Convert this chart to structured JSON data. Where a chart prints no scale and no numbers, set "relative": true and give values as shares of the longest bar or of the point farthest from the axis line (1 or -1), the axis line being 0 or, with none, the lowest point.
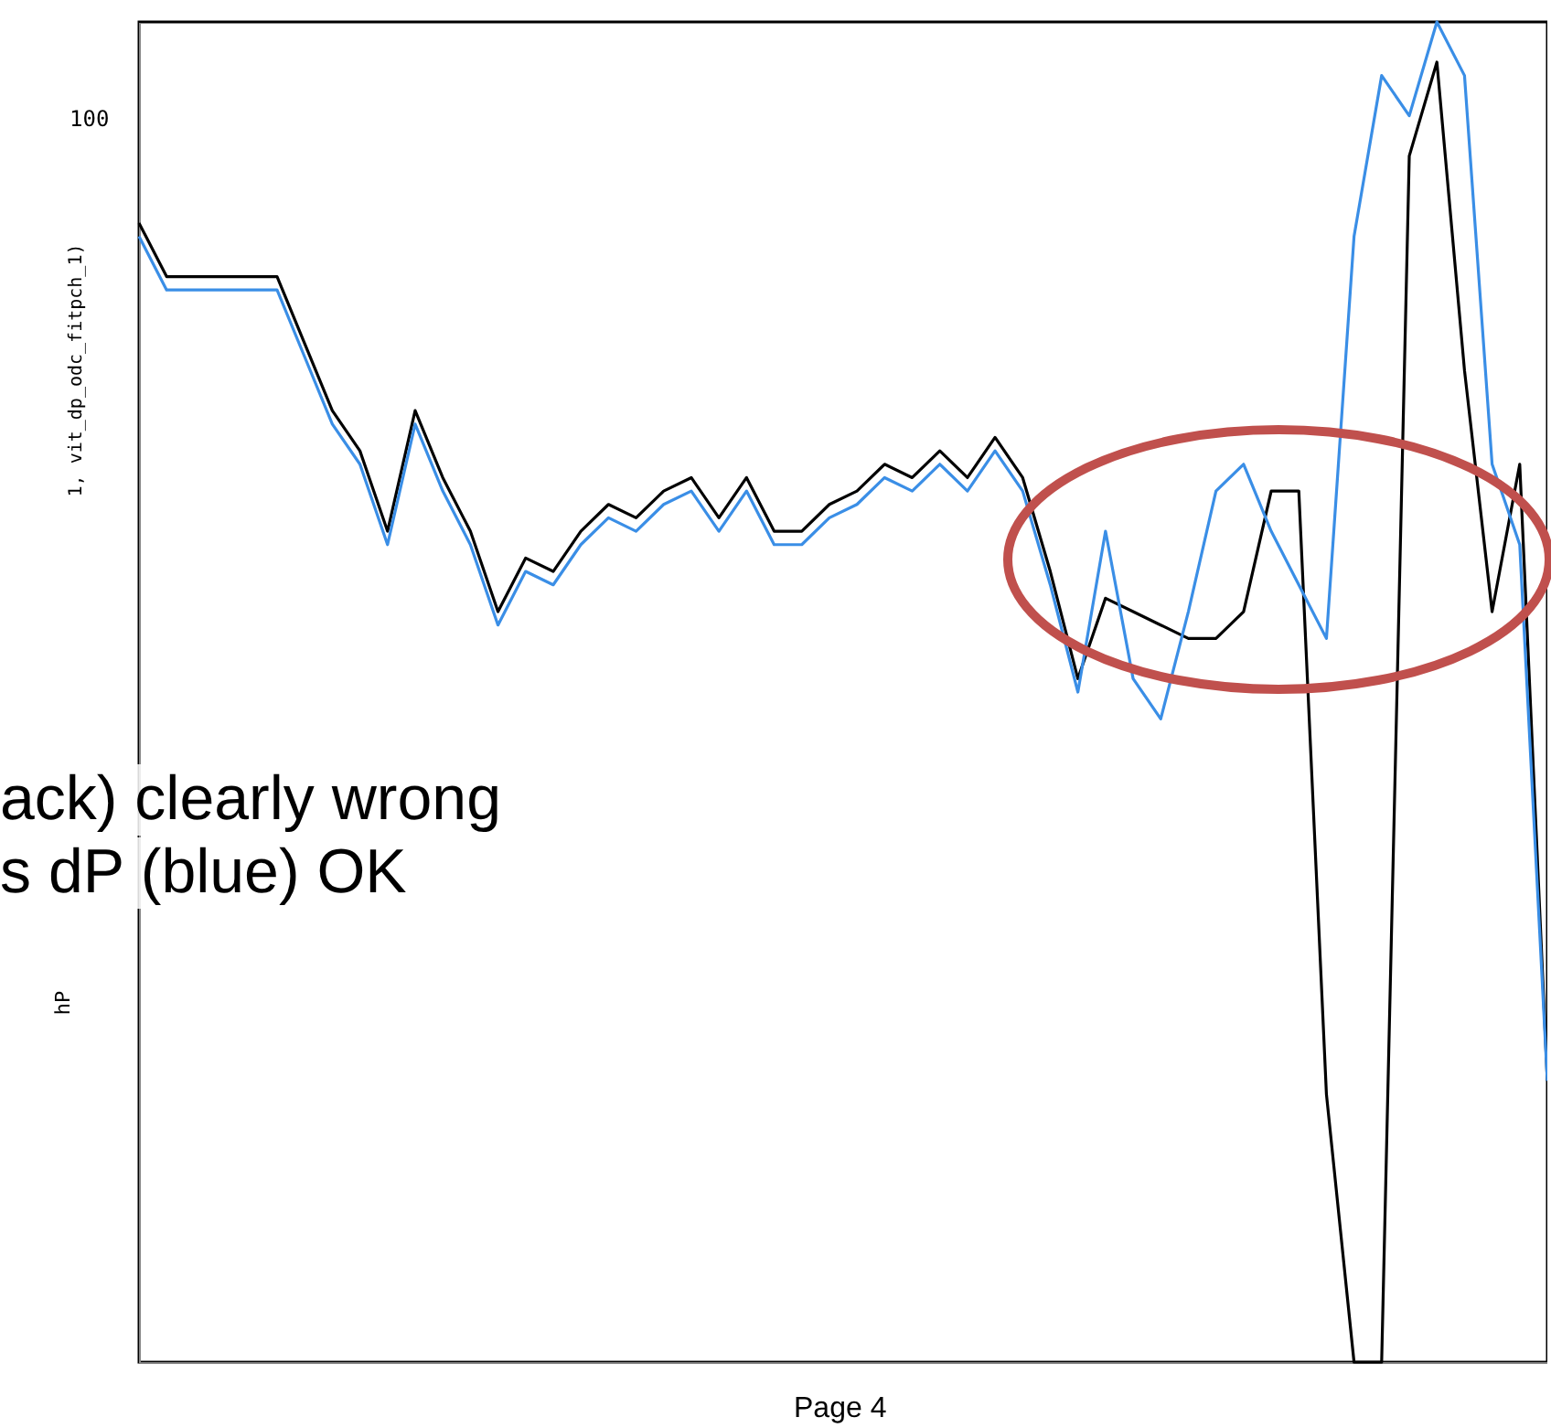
{
  "chart_data": {
    "type": "line",
    "relative": true,
    "ylabel": "1, vit_dp_odc_fitpch_1)",
    "categories": [
      null,
      null,
      null,
      null,
      null,
      null,
      null,
      null,
      null,
      null,
      null,
      null,
      null,
      null,
      null,
      null,
      null,
      null,
      null,
      null,
      null,
      null,
      null,
      null,
      null,
      null,
      null,
      null,
      null,
      null,
      null,
      null,
      null,
      null,
      null,
      null,
      null,
      null,
      null,
      null,
      null,
      null,
      null,
      null,
      null,
      null,
      null,
      null,
      null,
      null,
      null,
      null
    ],
    "series": [
      {
        "color": "#000000",
        "values": [
          0.85,
          0.81,
          0.81,
          0.81,
          0.81,
          0.81,
          0.76,
          0.71,
          0.68,
          0.62,
          0.71,
          0.66,
          0.62,
          0.56,
          0.6,
          0.59,
          0.62,
          0.64,
          0.63,
          0.65,
          0.66,
          0.63,
          0.66,
          0.62,
          0.62,
          0.64,
          0.65,
          0.67,
          0.66,
          0.68,
          0.66,
          0.69,
          0.66,
          0.59,
          0.51,
          0.57,
          0.56,
          0.55,
          0.54,
          0.54,
          0.56,
          0.65,
          0.65,
          0.2,
          0,
          0,
          0.9,
          0.97,
          0.74,
          0.56,
          0.67,
          0.21
        ]
      },
      {
        "color": "#3a8ee6",
        "values": [
          0.84,
          0.8,
          0.8,
          0.8,
          0.8,
          0.8,
          0.75,
          0.7,
          0.67,
          0.61,
          0.7,
          0.65,
          0.61,
          0.55,
          0.59,
          0.58,
          0.61,
          0.63,
          0.62,
          0.64,
          0.65,
          0.62,
          0.65,
          0.61,
          0.61,
          0.63,
          0.64,
          0.66,
          0.65,
          0.67,
          0.65,
          0.68,
          0.65,
          0.58,
          0.5,
          0.62,
          0.51,
          0.48,
          0.56,
          0.65,
          0.67,
          0.62,
          0.58,
          0.54,
          0.84,
          0.96,
          0.93,
          1,
          0.96,
          0.67,
          0.61,
          0.21
        ]
      }
    ],
    "annotations": [
      "100",
      "hP",
      "ack) clearly wrong",
      "s dP (blue) OK",
      "Page 4"
    ]
  }
}
